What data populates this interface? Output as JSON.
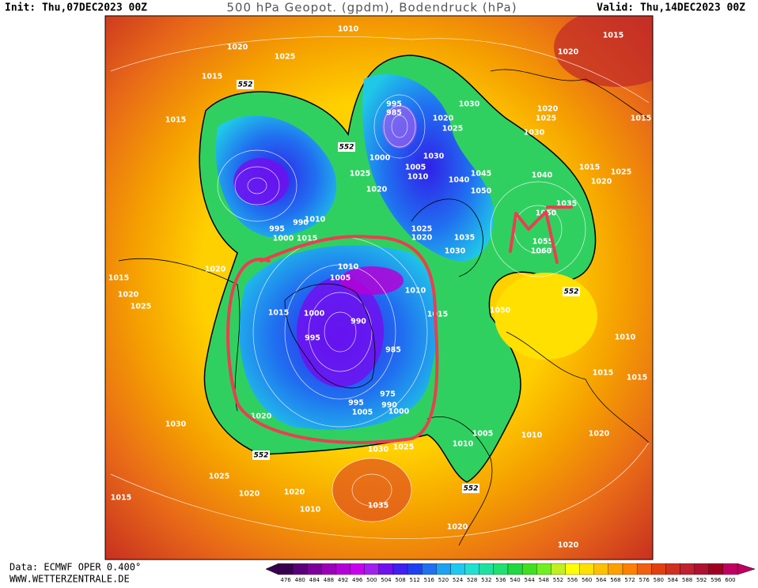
{
  "header": {
    "init": "Init: Thu,07DEC2023 00Z",
    "title": "500 hPa Geopot. (gpdm), Bodendruck (hPa)",
    "valid": "Valid: Thu,14DEC2023 00Z"
  },
  "footer": {
    "data": "Data: ECMWF OPER 0.400°",
    "site": "WWW.WETTERZENTRALE.DE"
  },
  "map": {
    "isobar_labels": [
      1010,
      1015,
      1020,
      1025,
      1020,
      1015,
      1015,
      995,
      985,
      1020,
      1025,
      1030,
      1020,
      1025,
      1015,
      1030,
      1030,
      1045,
      1040,
      1050,
      1040,
      1015,
      1025,
      1020,
      1000,
      1005,
      1010,
      1025,
      1020,
      1035,
      1050,
      1025,
      1020,
      1035,
      1030,
      1055,
      1060,
      1010,
      990,
      995,
      1000,
      1015,
      1010,
      1005,
      1010,
      1015,
      1020,
      1025,
      1020,
      1015,
      1000,
      990,
      995,
      985,
      975,
      995,
      990,
      1005,
      1000,
      1015,
      1010,
      1015,
      1015,
      1030,
      1005,
      1010,
      1010,
      1020,
      1030,
      1025,
      1025,
      1035,
      1020,
      1020,
      1010,
      1015,
      1020,
      1020,
      1050,
      1020
    ],
    "height_labels": [
      552,
      552,
      552,
      552,
      552
    ]
  },
  "colorbar": {
    "values": [
      476,
      480,
      484,
      488,
      492,
      496,
      500,
      504,
      508,
      512,
      516,
      520,
      524,
      528,
      532,
      536,
      540,
      544,
      548,
      552,
      556,
      560,
      564,
      568,
      572,
      576,
      580,
      584,
      588,
      592,
      596,
      600
    ],
    "colors": [
      "#3a0050",
      "#5a0078",
      "#7a0098",
      "#9a00b8",
      "#b400d8",
      "#c800f0",
      "#a020f0",
      "#7010f0",
      "#4020f0",
      "#2040f0",
      "#2070f0",
      "#20a0f0",
      "#20c8f0",
      "#20e0d0",
      "#20e0a0",
      "#20e070",
      "#20d840",
      "#40e020",
      "#70f020",
      "#c0f020",
      "#ffff00",
      "#ffe000",
      "#ffc000",
      "#ffa000",
      "#ff8000",
      "#f06010",
      "#e04010",
      "#d03020",
      "#c02030",
      "#b01030",
      "#a00020",
      "#c00060"
    ]
  }
}
